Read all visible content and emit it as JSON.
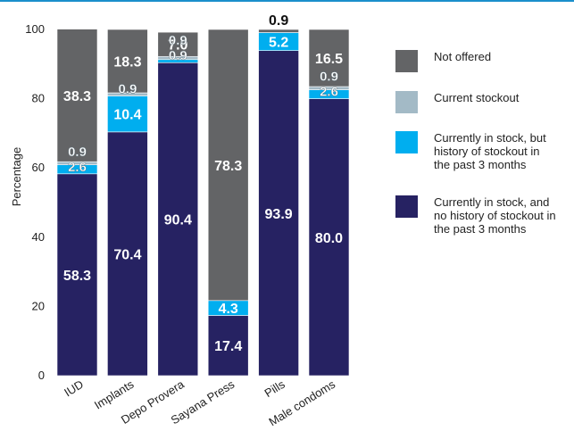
{
  "chart_data": {
    "type": "bar",
    "stacked": true,
    "ylabel": "Percentage",
    "ylim": [
      0,
      100
    ],
    "yticks": [
      "0",
      "20",
      "40",
      "60",
      "80",
      "100"
    ],
    "categories": [
      "IUD",
      "Implants",
      "Depo Provera",
      "Sayana Press",
      "Pills",
      "Male condoms"
    ],
    "series": [
      {
        "name": "Currently in stock, and no history of stockout in the past 3 months",
        "color": "#262262",
        "values": [
          58.3,
          70.4,
          90.4,
          17.4,
          93.9,
          80.0
        ],
        "labels": [
          "58.3",
          "70.4",
          "90.4",
          "17.4",
          "93.9",
          "80.0"
        ]
      },
      {
        "name": "Currently in stock, but history of stockout in the past 3 months",
        "color": "#00AEEF",
        "values": [
          2.6,
          10.4,
          0.9,
          4.3,
          5.2,
          2.6
        ],
        "labels": [
          "2.6",
          "10.4",
          "0.9",
          "4.3",
          "5.2",
          "2.6"
        ]
      },
      {
        "name": "Current stockout",
        "color": "#A3BAC6",
        "values": [
          0.9,
          0.9,
          0.9,
          0,
          0,
          0.9
        ],
        "labels": [
          "0.9",
          "0.9",
          "0.9",
          "",
          "",
          "0.9"
        ]
      },
      {
        "name": "Not offered",
        "color": "#636466",
        "values": [
          38.3,
          18.3,
          7.0,
          78.3,
          0.9,
          16.5
        ],
        "labels": [
          "38.3",
          "18.3",
          "7.0",
          "78.3",
          "0.9",
          "16.5"
        ]
      }
    ],
    "legend": {
      "position": "right",
      "items": [
        {
          "lines": [
            "Not offered"
          ],
          "color": "#636466"
        },
        {
          "lines": [
            "Current stockout"
          ],
          "color": "#A3BAC6"
        },
        {
          "lines": [
            "Currently in stock, but",
            "history of stockout in",
            "the past 3 months"
          ],
          "color": "#00AEEF"
        },
        {
          "lines": [
            "Currently in stock, and",
            "no history of stockout in",
            "the past 3 months"
          ],
          "color": "#262262"
        }
      ]
    },
    "grid": false
  }
}
